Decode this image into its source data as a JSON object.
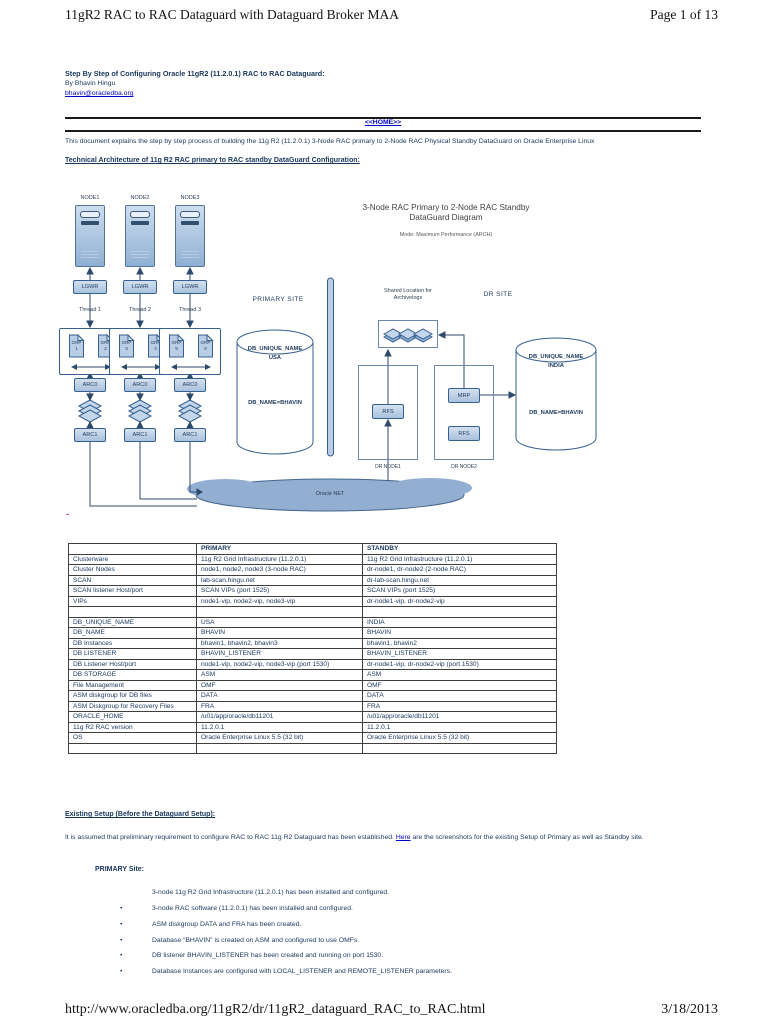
{
  "page": {
    "header": {
      "title": "11gR2 RAC to RAC Dataguard with Dataguard Broker MAA",
      "page_label": "Page 1 of 13"
    },
    "footer": {
      "url": "http://www.oracledba.org/11gR2/dr/11gR2_dataguard_RAC_to_RAC.html",
      "date": "3/18/2013"
    }
  },
  "intro": {
    "title": "Step By Step of Configuring Oracle 11gR2 (11.2.0.1) RAC to RAC Dataguard:",
    "byline": "By Bhavin Hingu",
    "email": "bhavin@oracledba.org",
    "home_link": "<<HOME>>",
    "description": "This document explains the step by step process of building the 11g R2 (11.2.0.1) 3-Node RAC primary to 2-Node RAC Physical Standby DataGuard on Oracle Enterprise Linux",
    "architecture_heading": "Technical Architecture of 11g R2 RAC primary to RAC standby DataGuard Configuration:"
  },
  "diagram": {
    "title_line1": "3-Node RAC Primary to 2-Node RAC Standby",
    "title_line2": "DataGuard Diagram",
    "mode": "Mode: Maximum Performance (ARCH)",
    "primary_site_label": "PRIMARY SITE",
    "dr_site_label": "DR SITE",
    "shared_location_line1": "Shared Location for",
    "shared_location_line2": "Archivelogs",
    "oracle_net_label": "Oracle NET",
    "grp_label": "GRP",
    "nodes": [
      {
        "name": "NODE1",
        "lgwr": "LGWR",
        "thread": "Thread 1",
        "arc0": "ARC0",
        "arc1": "ARC1",
        "groups": [
          "1",
          "2"
        ]
      },
      {
        "name": "NODE2",
        "lgwr": "LGWR",
        "thread": "Thread 2",
        "arc0": "ARC0",
        "arc1": "ARC1",
        "groups": [
          "3",
          "4"
        ]
      },
      {
        "name": "NODE3",
        "lgwr": "LGWR",
        "thread": "Thread 3",
        "arc0": "ARC0",
        "arc1": "ARC1",
        "groups": [
          "5",
          "6"
        ]
      }
    ],
    "primary_db": {
      "line1": "DB_UNIQUE_NAME",
      "line2": "USA",
      "line3": "DB_NAME=BHAVIN"
    },
    "standby_db": {
      "line1": "DB_UNIQUE_NAME",
      "line2": "INDIA",
      "line3": "DB_NAME=BHAVIN"
    },
    "dr_nodes": [
      {
        "label": "DR NODE1",
        "boxes": [
          "RFS"
        ]
      },
      {
        "label": "DR NODE2",
        "boxes": [
          "MRP",
          "RFS"
        ]
      }
    ]
  },
  "dash_note": "-",
  "config_table": {
    "columns": [
      "",
      "PRIMARY",
      "STANDBY"
    ],
    "rows": [
      [
        "Clusterware",
        "11g R2 Grid Infrastructure (11.2.0.1)",
        "11g R2 Grid Infrastructure (11.2.0.1)"
      ],
      [
        "Cluster Nodes",
        "node1, node2, node3 (3-node RAC)",
        "dr-node1, dr-node2 (2-node RAC)"
      ],
      [
        "SCAN",
        "lab-scan.hingu.net",
        "dr-lab-scan.hingu.net"
      ],
      [
        "SCAN listener Host/port",
        "SCAN VIPs (port 1525)",
        "SCAN VIPs (port 1525)"
      ],
      [
        "VIPs",
        "node1-vip, node2-vip, node3-vip",
        "dr-node1-vip, dr-node2-vip"
      ],
      [
        "",
        "",
        ""
      ],
      [
        "DB_UNIQUE_NAME",
        "USA",
        "INDIA"
      ],
      [
        "DB_NAME",
        "BHAVIN",
        "BHAVIN"
      ],
      [
        "DB Instances",
        "bhavin1, bhavin2, bhavin3",
        "bhavin1, bhavin2"
      ],
      [
        "DB LISTENER",
        "BHAVIN_LISTENER",
        "BHAVIN_LISTENER"
      ],
      [
        "DB Listener Host/port",
        "node1-vip, node2-vip, node3-vip (port 1530)",
        "dr-node1-vip, dr-node2-vip (port 1530)"
      ],
      [
        "DB STORAGE",
        "ASM",
        "ASM"
      ],
      [
        "File Management",
        "OMF",
        "OMF"
      ],
      [
        "ASM diskgroup for DB files",
        "DATA",
        "DATA"
      ],
      [
        "ASM Diskgroup for Recovery Files",
        "FRA",
        "FRA"
      ],
      [
        "ORACLE_HOME",
        "/u01/app/oracle/db11201",
        "/u01/app/oracle/db11201"
      ],
      [
        "11g R2 RAC version",
        "11.2.0.1",
        "11.2.0.1"
      ],
      [
        "OS",
        "Oracle Enterprise Linux 5.5 (32 bit)",
        "Oracle Enterprise Linux 5.5 (32 bit)"
      ],
      [
        "",
        "",
        ""
      ]
    ]
  },
  "existing_setup": {
    "heading": "Existing Setup (Before the Dataguard Setup):",
    "paragraph_before_link": "It is assumed that preliminary requirement to configure RAC to RAC 11g R2 Dataguard has been established. ",
    "link_text": "Here",
    "paragraph_after_link": " are the screenshots for the existing Setup of Primary as well as Standby site.",
    "primary_site_heading": "PRIMARY Site:",
    "first_item": "3-node 11g R2 Grid Infrastructure (11.2.0.1) has been installed and configured.",
    "bullets": [
      "3-node RAC software (11.2.0.1) has been installed and configured.",
      "ASM diskgroup DATA and FRA has been created.",
      "Database \"BHAVIN\" is created on ASM and configured to use OMFs.",
      "DB listener BHAVIN_LISTENER has been created and running on port 1530.",
      "Database Instances are configured with LOCAL_LISTENER and REMOTE_LISTENER parameters."
    ]
  },
  "colors": {
    "text_navy": "#17365D",
    "link_blue": "#0000CC",
    "box_fill": "#B9CDE5",
    "box_border": "#376092",
    "cloud_fill": "#92AFD1"
  }
}
